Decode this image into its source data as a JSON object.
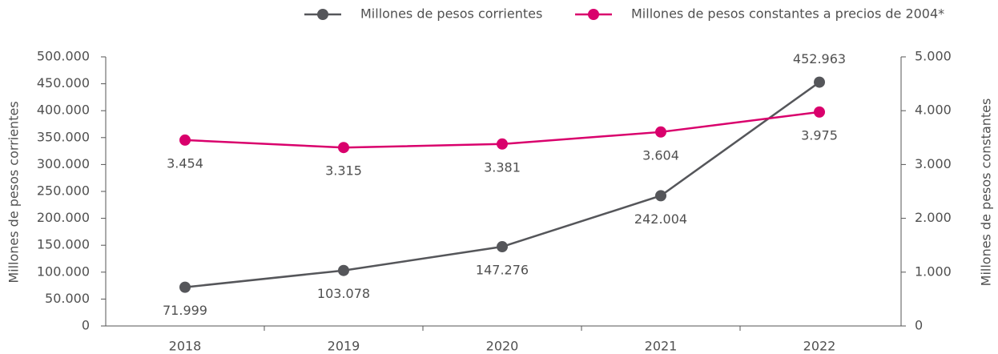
{
  "chart_data": {
    "type": "line",
    "categories": [
      "2018",
      "2019",
      "2020",
      "2021",
      "2022"
    ],
    "series": [
      {
        "name": "Millones de pesos corrientes",
        "color": "#55565a",
        "axis": "y",
        "values": [
          71999,
          103078,
          147276,
          242004,
          452963
        ],
        "value_labels": [
          "71.999",
          "103.078",
          "147.276",
          "242.004",
          "452.963"
        ]
      },
      {
        "name": "Millones de pesos constantes a precios de 2004*",
        "color": "#d9006c",
        "axis": "y2",
        "values": [
          3454,
          3315,
          3381,
          3604,
          3975
        ],
        "value_labels": [
          "3.454",
          "3.315",
          "3.381",
          "3.604",
          "3.975"
        ]
      }
    ],
    "ylabel": "Millones de pesos corrientes",
    "y2label": "Millones de pesos constantes",
    "ylim": [
      0,
      500000
    ],
    "yticks": [
      0,
      {
        "value": 50000,
        "label": "50.000"
      },
      {
        "value": 100000,
        "label": "100.000"
      },
      {
        "value": 150000,
        "label": "150.000"
      },
      {
        "value": 200000,
        "label": "200.000"
      },
      {
        "value": 250000,
        "label": "250.000"
      },
      {
        "value": 300000,
        "label": "300.000"
      },
      {
        "value": 350000,
        "label": "350.000"
      },
      {
        "value": 400000,
        "label": "400.000"
      },
      {
        "value": 450000,
        "label": "450.000"
      },
      {
        "value": 500000,
        "label": "500.000"
      }
    ],
    "y2lim": [
      0,
      5000
    ],
    "y2ticks": [
      0,
      {
        "value": 1000,
        "label": "1.000"
      },
      {
        "value": 2000,
        "label": "2.000"
      },
      {
        "value": 3000,
        "label": "3.000"
      },
      {
        "value": 4000,
        "label": "4.000"
      },
      {
        "value": 5000,
        "label": "5.000"
      }
    ],
    "legend": "top-right"
  }
}
